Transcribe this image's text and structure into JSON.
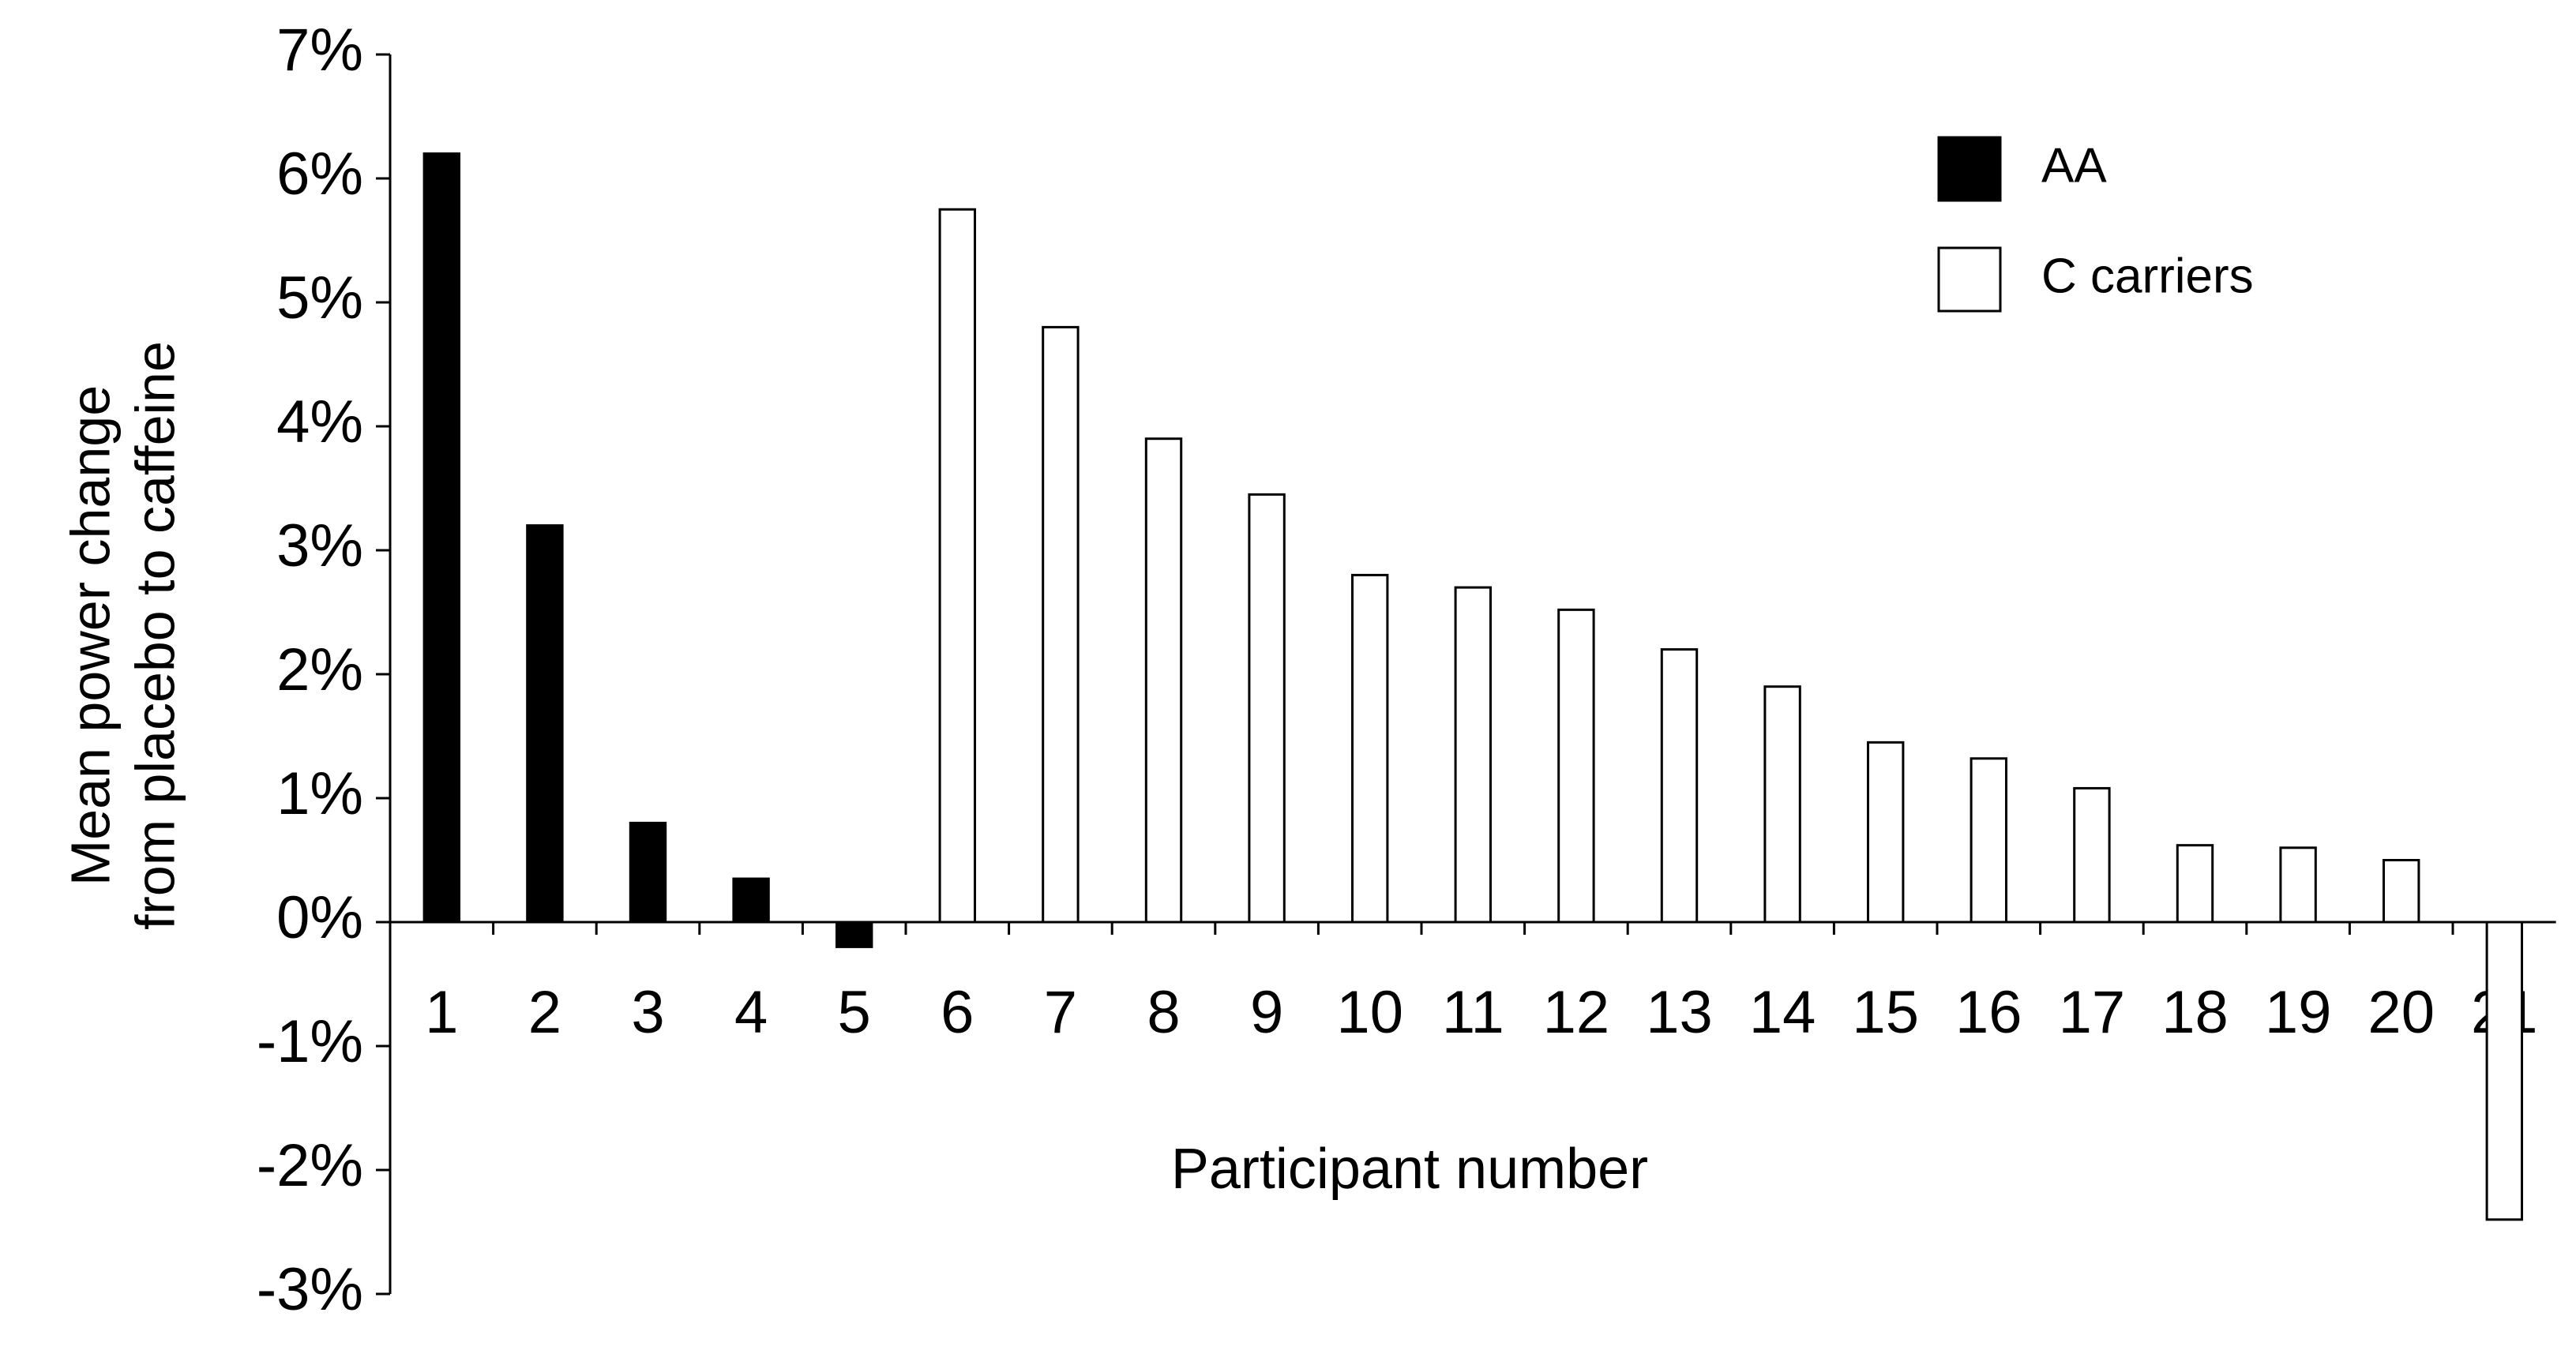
{
  "chart_data": {
    "type": "bar",
    "ylabel": [
      "Mean power change",
      "from placebo to caffeine"
    ],
    "xlabel": "Participant number",
    "categories": [
      "1",
      "2",
      "3",
      "4",
      "5",
      "6",
      "7",
      "8",
      "9",
      "10",
      "11",
      "12",
      "13",
      "14",
      "15",
      "16",
      "17",
      "18",
      "19",
      "20",
      "21"
    ],
    "series": [
      {
        "name": "AA",
        "color": "#000000",
        "values": [
          6.2,
          3.2,
          0.8,
          0.35,
          -0.2,
          null,
          null,
          null,
          null,
          null,
          null,
          null,
          null,
          null,
          null,
          null,
          null,
          null,
          null,
          null,
          null
        ]
      },
      {
        "name": "C carriers",
        "color": "#ffffff",
        "values": [
          null,
          null,
          null,
          null,
          null,
          5.75,
          4.8,
          3.9,
          3.45,
          2.8,
          2.7,
          2.52,
          2.2,
          1.9,
          1.45,
          1.32,
          1.08,
          0.62,
          0.6,
          0.5,
          -2.4
        ]
      }
    ],
    "ylim": [
      -3,
      7
    ],
    "yticks": [
      {
        "value": -3,
        "label": "-3%"
      },
      {
        "value": -2,
        "label": "-2%"
      },
      {
        "value": -1,
        "label": "-1%"
      },
      {
        "value": 0,
        "label": "0%"
      },
      {
        "value": 1,
        "label": "1%"
      },
      {
        "value": 2,
        "label": "2%"
      },
      {
        "value": 3,
        "label": "3%"
      },
      {
        "value": 4,
        "label": "4%"
      },
      {
        "value": 5,
        "label": "5%"
      },
      {
        "value": 6,
        "label": "6%"
      },
      {
        "value": 7,
        "label": "7%"
      }
    ],
    "legend": "top-right"
  }
}
